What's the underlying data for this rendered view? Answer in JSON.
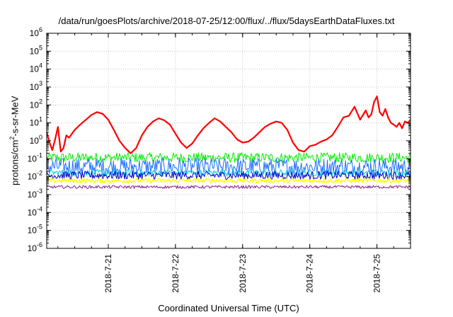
{
  "chart_data": {
    "type": "line",
    "title": "/data/run/goesPlots/archive/2018-07-25/12:00/flux/../flux/5daysEarthDataFluxes.txt",
    "xlabel": "Coordinated Universal Time (UTC)",
    "ylabel_parts": [
      "protons/cm",
      "2",
      "-s-sr-MeV"
    ],
    "y_scale": "log",
    "ylim": [
      1e-06,
      1000000.0
    ],
    "y_ticks": [
      {
        "base": "10",
        "exp": "-6",
        "value": 1e-06
      },
      {
        "base": "10",
        "exp": "-5",
        "value": 1e-05
      },
      {
        "base": "10",
        "exp": "-4",
        "value": 0.0001
      },
      {
        "base": "10",
        "exp": "-3",
        "value": 0.001
      },
      {
        "base": "10",
        "exp": "-2",
        "value": 0.01
      },
      {
        "base": "10",
        "exp": "-1",
        "value": 0.1
      },
      {
        "base": "10",
        "exp": "0",
        "value": 1
      },
      {
        "base": "10",
        "exp": "1",
        "value": 10
      },
      {
        "base": "10",
        "exp": "2",
        "value": 100
      },
      {
        "base": "10",
        "exp": "3",
        "value": 1000
      },
      {
        "base": "10",
        "exp": "4",
        "value": 10000
      },
      {
        "base": "10",
        "exp": "5",
        "value": 100000
      },
      {
        "base": "10",
        "exp": "6",
        "value": 1000000
      }
    ],
    "xlim": [
      "2018-07-20T02:00",
      "2018-07-25T12:00"
    ],
    "x_ticks": [
      {
        "label": "2018-7-21",
        "value": "2018-07-21T00:00"
      },
      {
        "label": "2018-7-22",
        "value": "2018-07-22T00:00"
      },
      {
        "label": "2018-7-23",
        "value": "2018-07-23T00:00"
      },
      {
        "label": "2018-7-24",
        "value": "2018-07-24T00:00"
      },
      {
        "label": "2018-7-25",
        "value": "2018-07-25T00:00"
      }
    ],
    "grid": true,
    "series": [
      {
        "color": "#ff0000",
        "width": 2.2,
        "x": [
          "2018-07-20T02:00",
          "2018-07-20T03:00",
          "2018-07-20T04:00",
          "2018-07-20T05:00",
          "2018-07-20T06:00",
          "2018-07-20T07:00",
          "2018-07-20T08:00",
          "2018-07-20T09:00",
          "2018-07-20T10:00",
          "2018-07-20T12:00",
          "2018-07-20T14:00",
          "2018-07-20T16:00",
          "2018-07-20T18:00",
          "2018-07-20T20:00",
          "2018-07-20T22:00",
          "2018-07-21T00:00",
          "2018-07-21T02:00",
          "2018-07-21T04:00",
          "2018-07-21T06:00",
          "2018-07-21T08:00",
          "2018-07-21T10:00",
          "2018-07-21T12:00",
          "2018-07-21T14:00",
          "2018-07-21T16:00",
          "2018-07-21T18:00",
          "2018-07-21T20:00",
          "2018-07-21T22:00",
          "2018-07-22T00:00",
          "2018-07-22T02:00",
          "2018-07-22T04:00",
          "2018-07-22T06:00",
          "2018-07-22T08:00",
          "2018-07-22T10:00",
          "2018-07-22T12:00",
          "2018-07-22T14:00",
          "2018-07-22T16:00",
          "2018-07-22T18:00",
          "2018-07-22T20:00",
          "2018-07-22T22:00",
          "2018-07-23T00:00",
          "2018-07-23T02:00",
          "2018-07-23T04:00",
          "2018-07-23T06:00",
          "2018-07-23T08:00",
          "2018-07-23T10:00",
          "2018-07-23T12:00",
          "2018-07-23T14:00",
          "2018-07-23T16:00",
          "2018-07-23T18:00",
          "2018-07-23T20:00",
          "2018-07-23T22:00",
          "2018-07-24T00:00",
          "2018-07-24T02:00",
          "2018-07-24T04:00",
          "2018-07-24T06:00",
          "2018-07-24T08:00",
          "2018-07-24T10:00",
          "2018-07-24T12:00",
          "2018-07-24T14:00",
          "2018-07-24T16:00",
          "2018-07-24T18:00",
          "2018-07-24T20:00",
          "2018-07-24T21:00",
          "2018-07-24T22:00",
          "2018-07-24T23:00",
          "2018-07-25T00:00",
          "2018-07-25T01:00",
          "2018-07-25T02:00",
          "2018-07-25T03:00",
          "2018-07-25T04:00",
          "2018-07-25T05:00",
          "2018-07-25T06:00",
          "2018-07-25T07:00",
          "2018-07-25T08:00",
          "2018-07-25T09:00",
          "2018-07-25T10:00",
          "2018-07-25T11:00",
          "2018-07-25T12:00"
        ],
        "y": [
          3,
          0.8,
          0.3,
          1.2,
          6,
          0.25,
          0.4,
          2,
          1.5,
          4,
          8,
          15,
          28,
          40,
          32,
          15,
          4,
          1,
          0.4,
          0.2,
          0.4,
          2,
          6,
          12,
          18,
          14,
          8,
          2.5,
          0.8,
          0.4,
          0.7,
          2,
          5,
          10,
          18,
          12,
          6,
          3,
          1.2,
          0.8,
          0.9,
          1.5,
          3,
          6,
          9,
          12,
          10,
          4,
          0.8,
          0.3,
          0.25,
          0.5,
          0.6,
          0.9,
          1.2,
          2,
          6,
          20,
          25,
          80,
          15,
          50,
          20,
          30,
          150,
          300,
          40,
          25,
          60,
          20,
          10,
          8,
          6,
          10,
          5,
          12,
          10,
          15
        ]
      },
      {
        "color": "#00ee00",
        "width": 1,
        "y_min": 0.06,
        "y_max": 0.22
      },
      {
        "color": "#1e6eff",
        "width": 1,
        "y_min": 0.012,
        "y_max": 0.11
      },
      {
        "color": "#00ccdd",
        "width": 1,
        "y_min": 0.011,
        "y_max": 0.025
      },
      {
        "color": "#0000cc",
        "width": 1,
        "y_min": 0.007,
        "y_max": 0.02
      },
      {
        "color": "#ffff00",
        "width": 1.4,
        "y_min": 0.0045,
        "y_max": 0.008
      },
      {
        "color": "#8b1a8b",
        "width": 1,
        "y_min": 0.0022,
        "y_max": 0.0032
      }
    ]
  }
}
